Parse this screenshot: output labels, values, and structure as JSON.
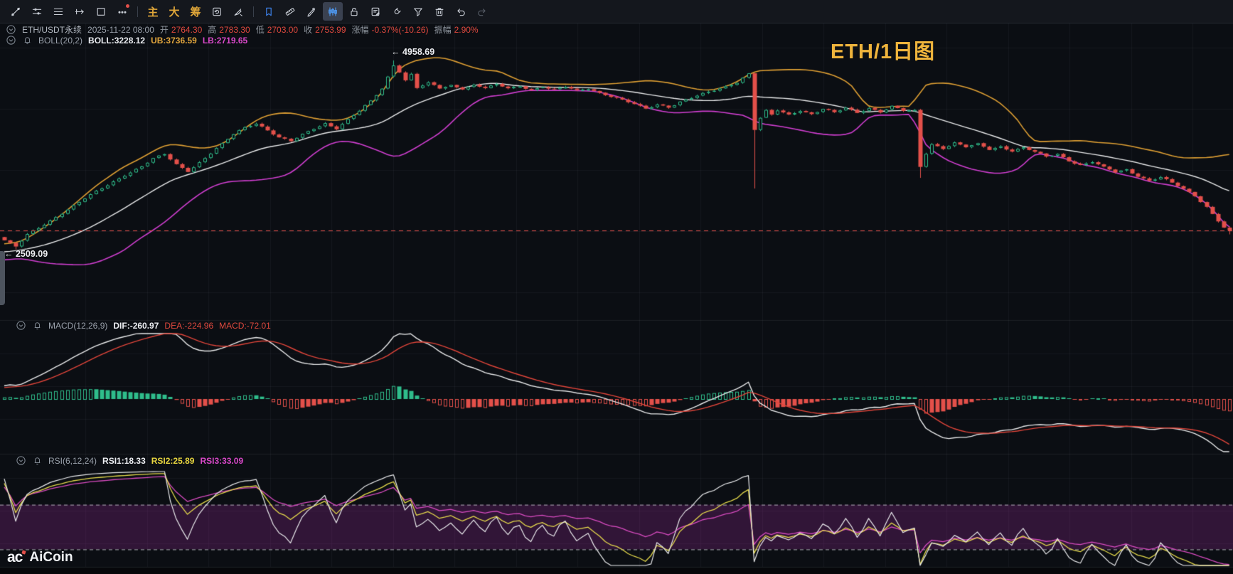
{
  "toolbar": {
    "tools": [
      {
        "id": "trendline"
      },
      {
        "id": "levels"
      },
      {
        "id": "parallel"
      },
      {
        "id": "ray"
      },
      {
        "id": "rect"
      },
      {
        "id": "more",
        "badge": true
      },
      {
        "id": "sep1",
        "sep": true
      },
      {
        "id": "zhu",
        "text": "主"
      },
      {
        "id": "da",
        "text": "大"
      },
      {
        "id": "chou",
        "text": "筹"
      },
      {
        "id": "refresh"
      },
      {
        "id": "brush"
      },
      {
        "id": "sep2",
        "sep": true
      },
      {
        "id": "bookmark",
        "blue": true
      },
      {
        "id": "ruler"
      },
      {
        "id": "pen"
      },
      {
        "id": "candles",
        "activeBg": true
      },
      {
        "id": "lock"
      },
      {
        "id": "note"
      },
      {
        "id": "magnet"
      },
      {
        "id": "filter"
      },
      {
        "id": "trash"
      },
      {
        "id": "undo"
      },
      {
        "id": "redo",
        "dim": true
      }
    ]
  },
  "info": {
    "pair": "ETH/USDT永续",
    "datetime": "2025-11-22 08:00",
    "fields": [
      {
        "label": "开",
        "value": "2764.30"
      },
      {
        "label": "高",
        "value": "2783.30"
      },
      {
        "label": "低",
        "value": "2703.00"
      },
      {
        "label": "收",
        "value": "2753.99"
      }
    ],
    "change_label": "涨幅",
    "change_value": "-0.37%(-10.26)",
    "amp_label": "振幅",
    "amp_value": "2.90%"
  },
  "boll": {
    "name": "BOLL(20,2)",
    "boll": "BOLL:3228.12",
    "ub": "UB:3736.59",
    "lb": "LB:2719.65"
  },
  "macd_label": {
    "name": "MACD(12,26,9)",
    "dif": "DIF:-260.97",
    "dea": "DEA:-224.96",
    "macd": "MACD:-72.01"
  },
  "rsi_label": {
    "name": "RSI(6,12,24)",
    "rsi1": "RSI1:18.33",
    "rsi2": "RSI2:25.89",
    "rsi3": "RSI3:33.09"
  },
  "overlays": {
    "title": "ETH/1日图",
    "high_marker": {
      "arrow": "←",
      "value": "4958.69"
    },
    "low_marker": {
      "arrow": "←",
      "value": "2509.09"
    },
    "watermark": "AiCoin",
    "logo_mark": "ac"
  },
  "chart_data": {
    "type": "candlestick",
    "symbol": "ETH/USDT永续",
    "timeframe": "1日",
    "ohlc": {
      "date": "2025-11-22 08:00",
      "open": 2764.3,
      "high": 2783.3,
      "low": 2703.0,
      "close": 2753.99,
      "change_pct": -0.37,
      "change": -10.26,
      "amplitude_pct": 2.9
    },
    "marked_high": 4958.69,
    "marked_low": 2509.09,
    "last_price_line": 2753.99,
    "boll": {
      "period": 20,
      "dev": 2,
      "boll": 3228.12,
      "ub": 3736.59,
      "lb": 2719.65
    },
    "macd": {
      "params": [
        12,
        26,
        9
      ],
      "dif": -260.97,
      "dea": -224.96,
      "macd": -72.01
    },
    "rsi": {
      "params": [
        6,
        12,
        24
      ],
      "rsi1": 18.33,
      "rsi2": 25.89,
      "rsi3": 33.09,
      "upper_band": 70,
      "lower_band": 30
    },
    "candles": {
      "count": 215,
      "close_anchors": [
        [
          0,
          2626
        ],
        [
          2,
          2538
        ],
        [
          4,
          2695
        ],
        [
          7,
          2838
        ],
        [
          10,
          2985
        ],
        [
          13,
          3120
        ],
        [
          16,
          3255
        ],
        [
          19,
          3390
        ],
        [
          21,
          3480
        ],
        [
          24,
          3585
        ],
        [
          26,
          3680
        ],
        [
          28,
          3740
        ],
        [
          30,
          3610
        ],
        [
          32,
          3530
        ],
        [
          34,
          3640
        ],
        [
          36,
          3755
        ],
        [
          38,
          3870
        ],
        [
          40,
          4000
        ],
        [
          42,
          4095
        ],
        [
          44,
          4150
        ],
        [
          46,
          4060
        ],
        [
          48,
          3955
        ],
        [
          50,
          3905
        ],
        [
          52,
          3995
        ],
        [
          54,
          4080
        ],
        [
          56,
          4150
        ],
        [
          58,
          4080
        ],
        [
          60,
          4190
        ],
        [
          62,
          4300
        ],
        [
          64,
          4430
        ],
        [
          66,
          4600
        ],
        [
          68,
          4905
        ],
        [
          69,
          4820
        ],
        [
          70,
          4705
        ],
        [
          71,
          4780
        ],
        [
          72,
          4600
        ],
        [
          74,
          4660
        ],
        [
          76,
          4595
        ],
        [
          78,
          4640
        ],
        [
          80,
          4600
        ],
        [
          82,
          4645
        ],
        [
          84,
          4600
        ],
        [
          86,
          4640
        ],
        [
          88,
          4595
        ],
        [
          90,
          4630
        ],
        [
          92,
          4585
        ],
        [
          94,
          4620
        ],
        [
          96,
          4575
        ],
        [
          98,
          4610
        ],
        [
          100,
          4565
        ],
        [
          102,
          4600
        ],
        [
          104,
          4545
        ],
        [
          106,
          4495
        ],
        [
          108,
          4440
        ],
        [
          110,
          4385
        ],
        [
          112,
          4330
        ],
        [
          114,
          4395
        ],
        [
          116,
          4360
        ],
        [
          118,
          4425
        ],
        [
          120,
          4470
        ],
        [
          122,
          4520
        ],
        [
          124,
          4570
        ],
        [
          126,
          4625
        ],
        [
          128,
          4685
        ],
        [
          130,
          4790
        ],
        [
          131,
          4060
        ],
        [
          132,
          4210
        ],
        [
          133,
          4300
        ],
        [
          134,
          4245
        ],
        [
          135,
          4310
        ],
        [
          137,
          4255
        ],
        [
          139,
          4320
        ],
        [
          141,
          4265
        ],
        [
          143,
          4330
        ],
        [
          145,
          4275
        ],
        [
          147,
          4340
        ],
        [
          149,
          4285
        ],
        [
          151,
          4350
        ],
        [
          153,
          4295
        ],
        [
          155,
          4360
        ],
        [
          157,
          4300
        ],
        [
          159,
          4305
        ],
        [
          160,
          3580
        ],
        [
          161,
          3760
        ],
        [
          162,
          3880
        ],
        [
          164,
          3825
        ],
        [
          166,
          3890
        ],
        [
          168,
          3830
        ],
        [
          170,
          3870
        ],
        [
          172,
          3805
        ],
        [
          174,
          3850
        ],
        [
          176,
          3790
        ],
        [
          178,
          3830
        ],
        [
          180,
          3765
        ],
        [
          182,
          3705
        ],
        [
          184,
          3745
        ],
        [
          186,
          3665
        ],
        [
          188,
          3605
        ],
        [
          190,
          3645
        ],
        [
          192,
          3565
        ],
        [
          194,
          3505
        ],
        [
          196,
          3545
        ],
        [
          198,
          3465
        ],
        [
          200,
          3405
        ],
        [
          202,
          3445
        ],
        [
          204,
          3365
        ],
        [
          206,
          3285
        ],
        [
          208,
          3205
        ],
        [
          210,
          3065
        ],
        [
          212,
          2885
        ],
        [
          213,
          2795
        ],
        [
          214,
          2754
        ]
      ],
      "special_highs": {
        "68": 4958.69
      },
      "special_lows": {
        "2": 2509.09,
        "131": 3298,
        "160": 3436,
        "214": 2703
      }
    },
    "colors": {
      "background": "#0b0e13",
      "up": "#2fbd8b",
      "down": "#e3504a",
      "boll_upper": "#dd9e33",
      "boll_mid": "#e8e9ea",
      "boll_lower": "#cf3ecf",
      "dif_line": "#e8e9ea",
      "dea_line": "#e0453a",
      "rsi1": "#e9eaec",
      "rsi2": "#e4d94b",
      "rsi3": "#d84bc0",
      "price_dash": "#e3504a",
      "rsi_band_fill": "rgba(150,40,150,0.28)",
      "grid": "rgba(150,160,180,0.07)",
      "title_gold": "#efb43c"
    }
  }
}
